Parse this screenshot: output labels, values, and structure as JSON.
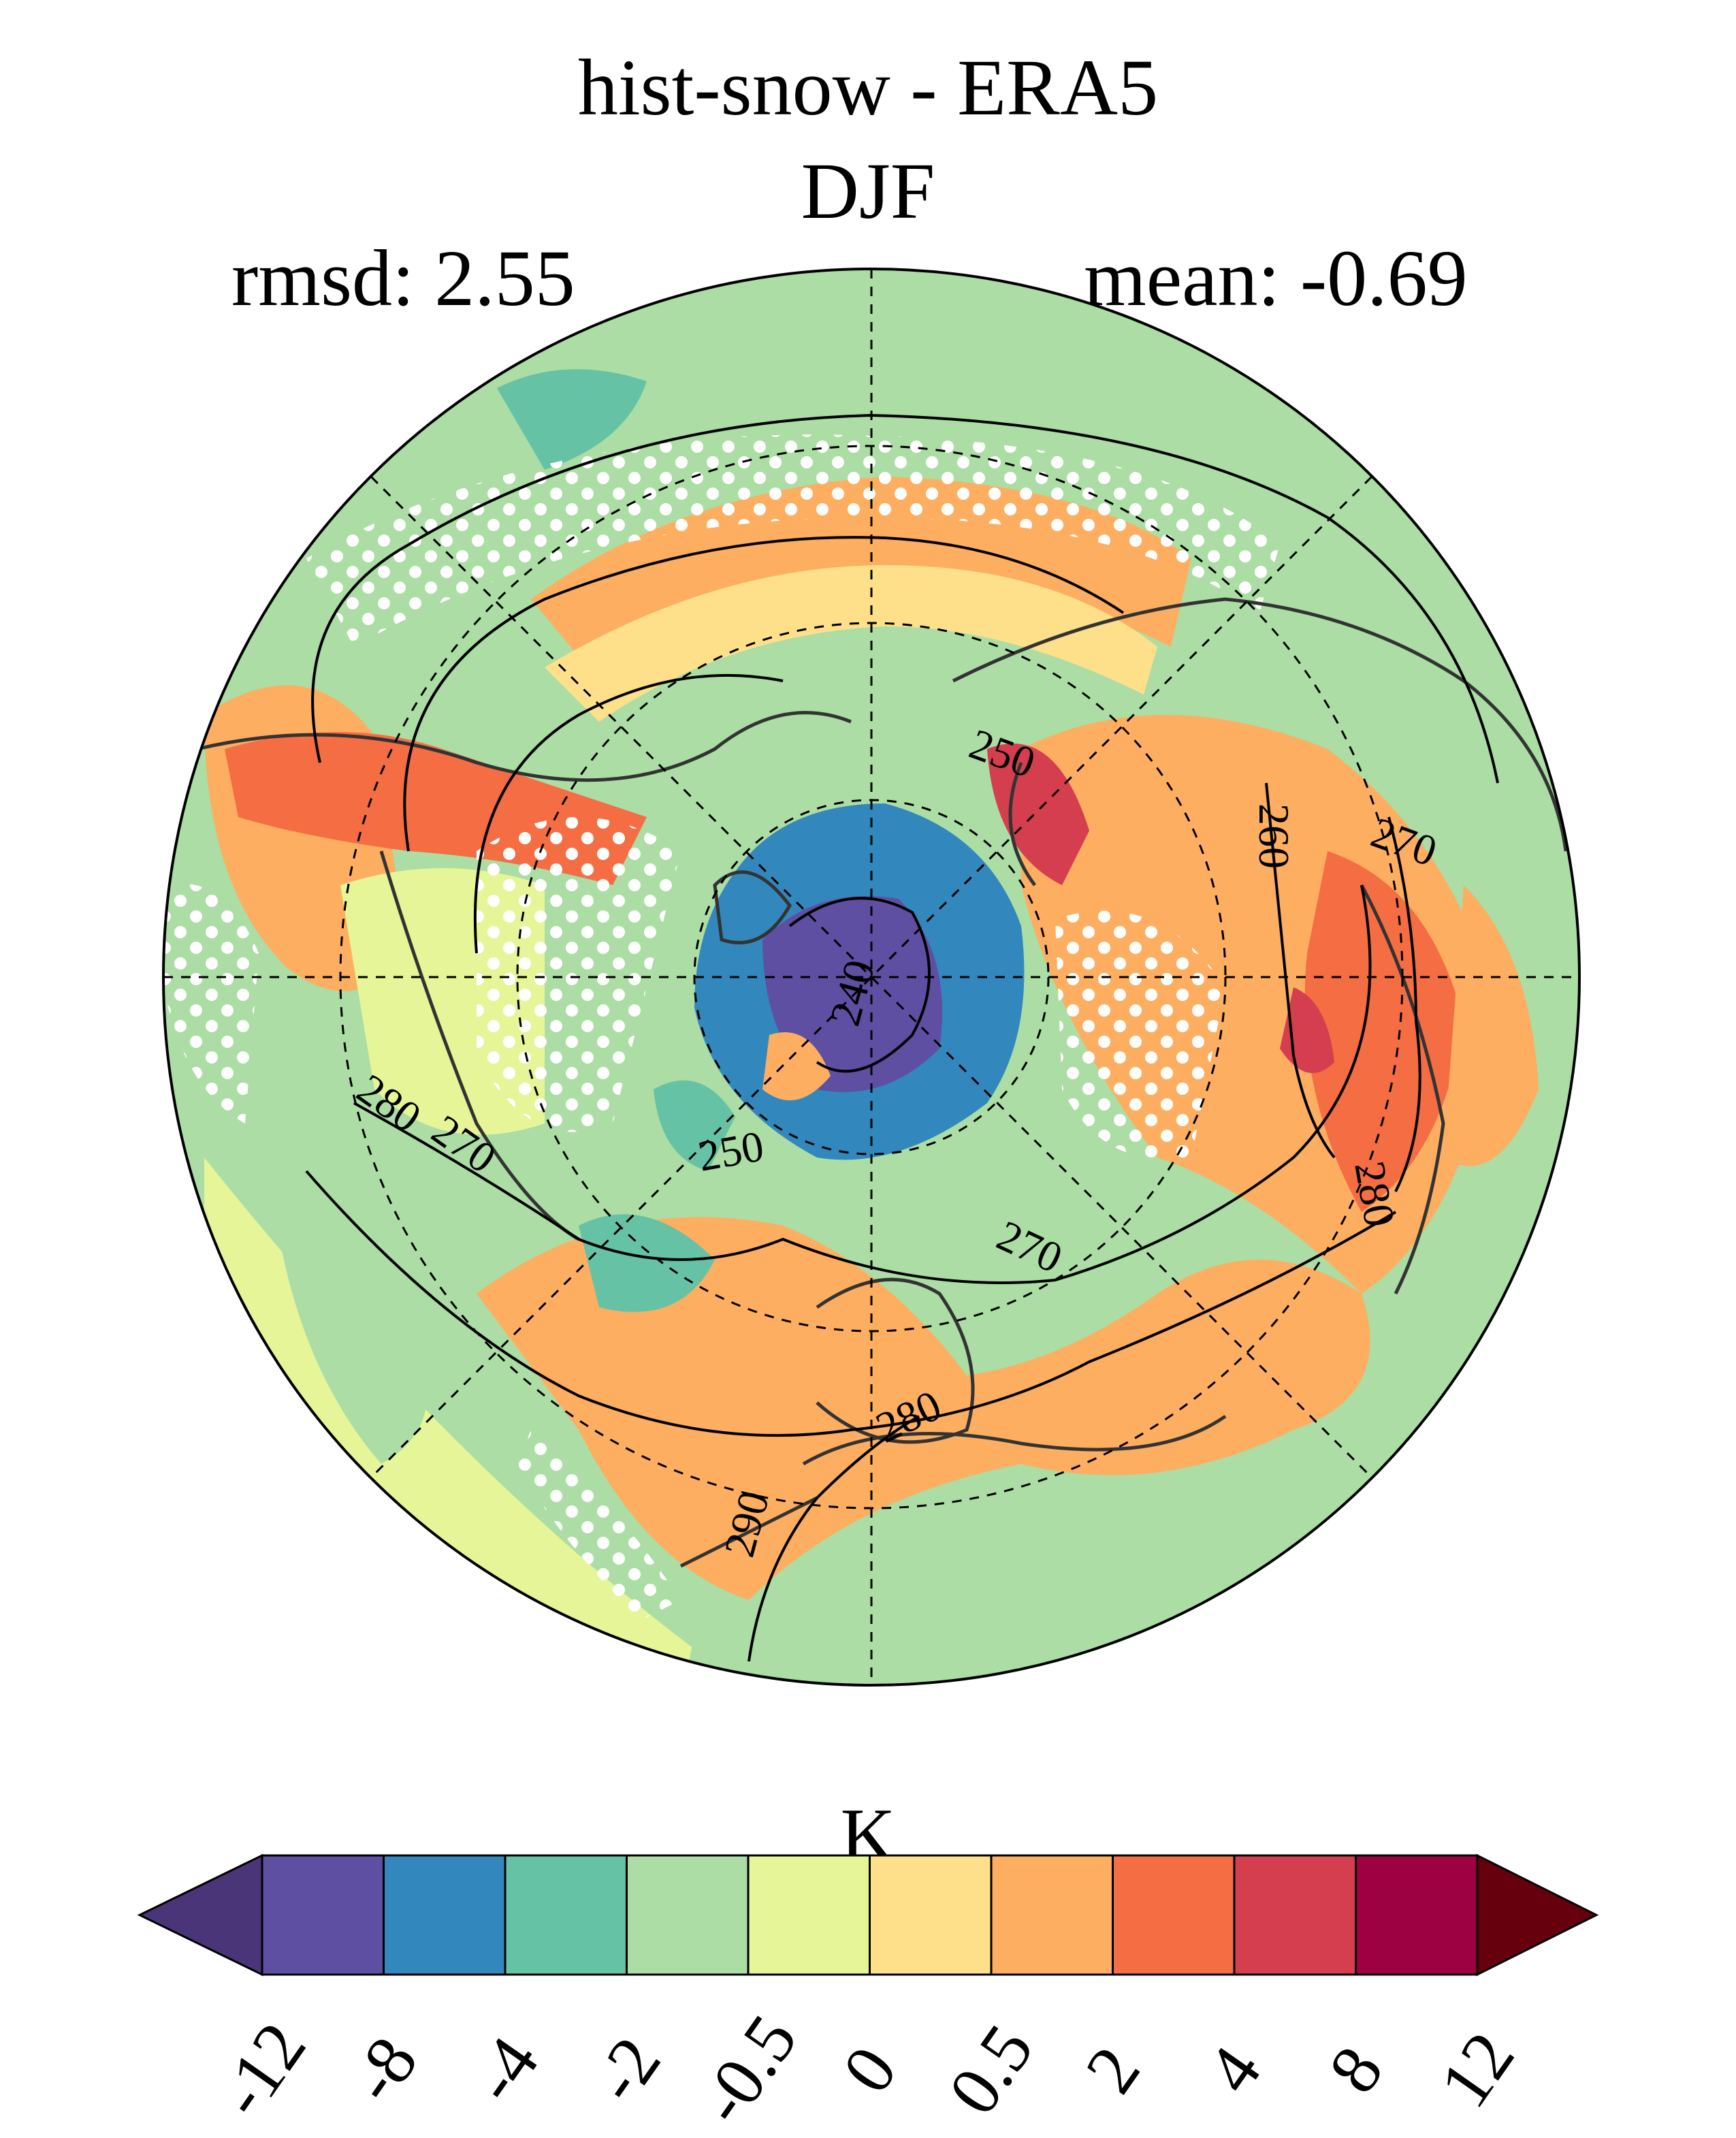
{
  "title_line1": "hist-snow - ERA5",
  "title_line2": "DJF",
  "stats": {
    "rmsd": "rmsd: 2.55",
    "mean": "mean: -0.69"
  },
  "colorbar": {
    "unit": "K",
    "ticks": [
      "-12",
      "-8",
      "-4",
      "-2",
      "-0.5",
      "0",
      "0.5",
      "2",
      "4",
      "8",
      "12"
    ],
    "colors": [
      "#5e4fa2",
      "#3288bd",
      "#66c2a5",
      "#abdda4",
      "#e6f598",
      "#fee08b",
      "#fdae61",
      "#f46d43",
      "#d53e4f",
      "#9e0142"
    ],
    "under_color": "#4a3579",
    "over_color": "#67000d"
  },
  "contour_labels": [
    "250",
    "260",
    "270",
    "240",
    "280",
    "270",
    "250",
    "270",
    "280",
    "290",
    "280"
  ],
  "map": {
    "projection": "north-polar-stereographic",
    "field": "DJF surface temperature difference hist-snow minus ERA5",
    "stippling": "white dots"
  }
}
